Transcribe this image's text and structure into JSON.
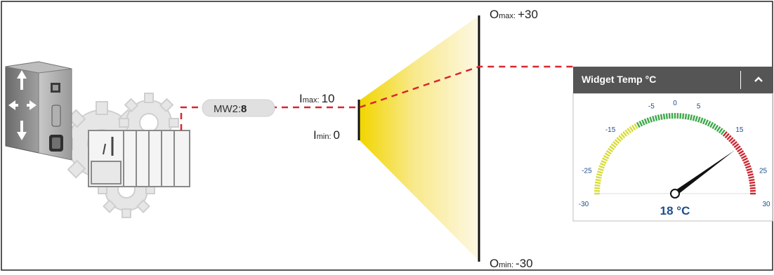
{
  "mapping": {
    "input_tag": {
      "name": "MW2:",
      "value": "8"
    },
    "input_max": {
      "label": "max",
      "prefix": "I",
      "value": "10"
    },
    "input_min": {
      "label": "min",
      "prefix": "I",
      "value": "0"
    },
    "output_max": {
      "label": "max",
      "prefix": "O",
      "value": "+30"
    },
    "output_min": {
      "label": "min",
      "prefix": "O",
      "value": "-30"
    }
  },
  "widget": {
    "title": "Widget Temp °C",
    "gauge": {
      "min": -30,
      "max": 30,
      "value": 18,
      "readout": "18 °C",
      "tick_labels": [
        "-30",
        "-25",
        "-15",
        "-5",
        "0",
        "5",
        "15",
        "25",
        "30"
      ],
      "zones": [
        {
          "from": -30,
          "to": -10,
          "color": "#d8dc3a"
        },
        {
          "from": -10,
          "to": 13,
          "color": "#3fa84a"
        },
        {
          "from": 13,
          "to": 30,
          "color": "#cc2630"
        }
      ]
    }
  },
  "colors": {
    "link_dash": "#d9262e",
    "gauge_text": "#1f4e8c",
    "widget_header": "#555555",
    "device_gray": "#888888",
    "cone_yellow": "#f2d500"
  },
  "icons": {
    "router": "network-switch-icon",
    "plc": "plc-rack-icon",
    "gears": "gears-icon",
    "collapse": "chevron-up-icon"
  }
}
